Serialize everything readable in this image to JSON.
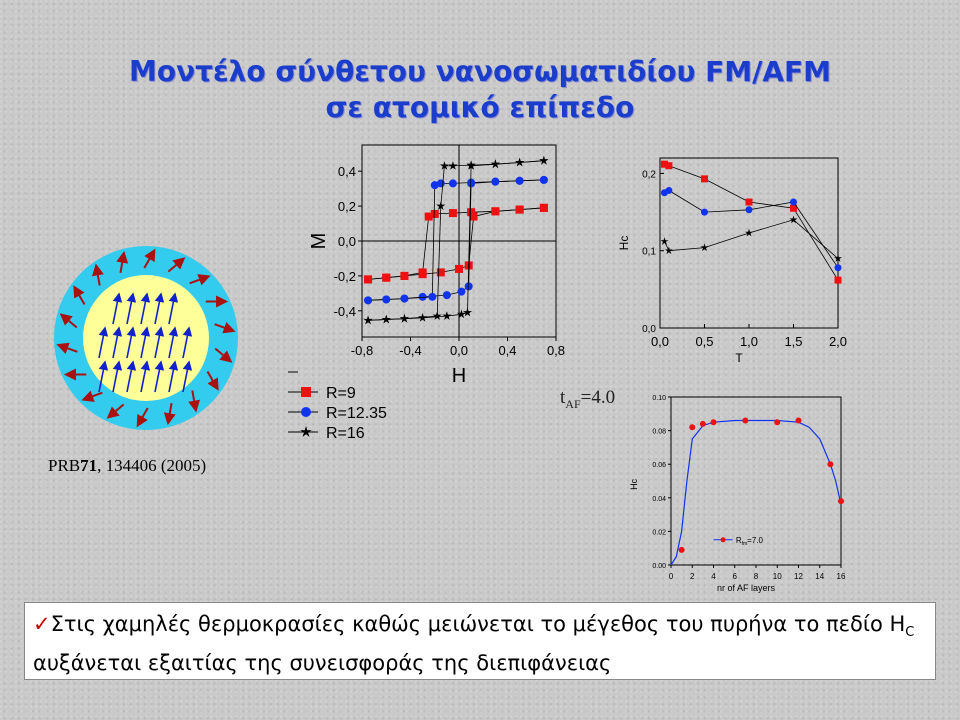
{
  "slide": {
    "title_line1": "Μοντέλο σύνθετου νανοσωματιδίου FM/AFM",
    "title_line2": "σε ατομικό επίπεδο",
    "reference_prefix": "PRB",
    "reference_volume": "71",
    "reference_rest": ", 134406 (2005)",
    "t_af_label": "t",
    "t_af_sub": "AF",
    "t_af_value": "=4.0",
    "note_check": "✓",
    "note_text_1": "Στις χαμηλές θερμοκρασίες καθώς μειώνεται το μέγεθος του πυρήνα   το πεδίο H",
    "note_sub": "C",
    "note_text_2": " αυξάνεται εξαιτίας της συνεισφοράς της διεπιφάνειας"
  },
  "colors": {
    "title": "#1a3dcc",
    "shell": "#33ccee",
    "core": "#ffff99",
    "red": "#ee1111",
    "blue": "#1133ee",
    "black": "#000000"
  },
  "chart_data": [
    {
      "type": "line",
      "name": "hysteresis",
      "xlabel": "H",
      "ylabel": "M",
      "xlim": [
        -0.8,
        0.8
      ],
      "ylim": [
        -0.55,
        0.55
      ],
      "xticks": [
        "-0,8",
        "-0,4",
        "0,0",
        "0,4",
        "0,8"
      ],
      "yticks": [
        "-0,4",
        "-0,2",
        "0,0",
        "0,2",
        "0,4"
      ],
      "xtick_values": [
        -0.8,
        -0.4,
        0.0,
        0.4,
        0.8
      ],
      "ytick_values": [
        -0.4,
        -0.2,
        0.0,
        0.2,
        0.4
      ],
      "legend": [
        "R=9",
        "R=12.35",
        "R=16"
      ],
      "series": [
        {
          "name": "R=9",
          "marker": "square",
          "color": "#ee1111",
          "lower": [
            [
              -0.75,
              -0.22
            ],
            [
              -0.6,
              -0.21
            ],
            [
              -0.45,
              -0.2
            ],
            [
              -0.3,
              -0.19
            ],
            [
              -0.15,
              -0.18
            ],
            [
              0.0,
              -0.16
            ],
            [
              0.08,
              -0.14
            ],
            [
              0.12,
              0.14
            ],
            [
              0.3,
              0.17
            ],
            [
              0.5,
              0.18
            ],
            [
              0.7,
              0.19
            ]
          ],
          "upper": [
            [
              0.7,
              0.19
            ],
            [
              0.5,
              0.18
            ],
            [
              0.3,
              0.17
            ],
            [
              0.1,
              0.165
            ],
            [
              -0.05,
              0.16
            ],
            [
              -0.2,
              0.155
            ],
            [
              -0.25,
              0.14
            ],
            [
              -0.3,
              -0.18
            ],
            [
              -0.45,
              -0.2
            ],
            [
              -0.6,
              -0.21
            ],
            [
              -0.75,
              -0.22
            ]
          ]
        },
        {
          "name": "R=12.35",
          "marker": "circle",
          "color": "#1133ee",
          "lower": [
            [
              -0.75,
              -0.34
            ],
            [
              -0.6,
              -0.335
            ],
            [
              -0.45,
              -0.33
            ],
            [
              -0.3,
              -0.32
            ],
            [
              -0.1,
              -0.31
            ],
            [
              0.02,
              -0.29
            ],
            [
              0.08,
              -0.26
            ],
            [
              0.1,
              0.33
            ],
            [
              0.3,
              0.34
            ],
            [
              0.5,
              0.345
            ],
            [
              0.7,
              0.35
            ]
          ],
          "upper": [
            [
              0.7,
              0.35
            ],
            [
              0.5,
              0.345
            ],
            [
              0.3,
              0.34
            ],
            [
              0.1,
              0.335
            ],
            [
              -0.05,
              0.33
            ],
            [
              -0.15,
              0.33
            ],
            [
              -0.2,
              0.32
            ],
            [
              -0.22,
              -0.32
            ],
            [
              -0.45,
              -0.33
            ],
            [
              -0.6,
              -0.335
            ],
            [
              -0.75,
              -0.34
            ]
          ]
        },
        {
          "name": "R=16",
          "marker": "star",
          "color": "#000000",
          "lower": [
            [
              -0.75,
              -0.455
            ],
            [
              -0.6,
              -0.45
            ],
            [
              -0.45,
              -0.445
            ],
            [
              -0.3,
              -0.44
            ],
            [
              -0.1,
              -0.43
            ],
            [
              0.02,
              -0.42
            ],
            [
              0.07,
              -0.41
            ],
            [
              0.1,
              0.43
            ],
            [
              0.3,
              0.44
            ],
            [
              0.5,
              0.45
            ],
            [
              0.7,
              0.46
            ]
          ],
          "upper": [
            [
              0.7,
              0.46
            ],
            [
              0.5,
              0.45
            ],
            [
              0.3,
              0.44
            ],
            [
              0.1,
              0.435
            ],
            [
              -0.05,
              0.43
            ],
            [
              -0.12,
              0.43
            ],
            [
              -0.15,
              0.2
            ],
            [
              -0.18,
              -0.43
            ],
            [
              -0.45,
              -0.445
            ],
            [
              -0.6,
              -0.45
            ],
            [
              -0.75,
              -0.455
            ]
          ]
        }
      ]
    },
    {
      "type": "line",
      "name": "hc-vs-T",
      "xlabel": "T",
      "ylabel": "Hc",
      "xlim": [
        0.0,
        2.0
      ],
      "ylim": [
        0.0,
        0.22
      ],
      "xticks": [
        "0,0",
        "0,5",
        "1,0",
        "1,5",
        "2,0"
      ],
      "yticks": [
        "0,0",
        "0,1",
        "0,2"
      ],
      "xtick_values": [
        0.0,
        0.5,
        1.0,
        1.5,
        2.0
      ],
      "ytick_values": [
        0.0,
        0.1,
        0.2
      ],
      "series": [
        {
          "marker": "square",
          "color": "#ee1111",
          "x": [
            0.05,
            0.1,
            0.5,
            1.0,
            1.5,
            2.0
          ],
          "y": [
            0.212,
            0.21,
            0.193,
            0.163,
            0.155,
            0.062
          ]
        },
        {
          "marker": "circle",
          "color": "#1133ee",
          "x": [
            0.05,
            0.1,
            0.5,
            1.0,
            1.5,
            2.0
          ],
          "y": [
            0.175,
            0.178,
            0.15,
            0.153,
            0.163,
            0.078
          ]
        },
        {
          "marker": "star",
          "color": "#000000",
          "x": [
            0.05,
            0.1,
            0.5,
            1.0,
            1.5,
            2.0
          ],
          "y": [
            0.112,
            0.1,
            0.104,
            0.123,
            0.14,
            0.09
          ]
        }
      ]
    },
    {
      "type": "scatter",
      "name": "hc-vs-af-layers",
      "xlabel": "nr of AF layers",
      "ylabel": "Hc",
      "xlim": [
        0,
        16
      ],
      "ylim": [
        0.0,
        0.1
      ],
      "xticks": [
        "0",
        "2",
        "4",
        "6",
        "8",
        "10",
        "12",
        "14",
        "16"
      ],
      "yticks": [
        "0.00",
        "0.02",
        "0.04",
        "0.06",
        "0.08",
        "0.10"
      ],
      "xtick_values": [
        0,
        2,
        4,
        6,
        8,
        10,
        12,
        14,
        16
      ],
      "ytick_values": [
        0.0,
        0.02,
        0.04,
        0.06,
        0.08,
        0.1
      ],
      "legend_label": "R",
      "legend_sub": "fm",
      "legend_value": "=7.0",
      "points": {
        "x": [
          1,
          2,
          3,
          4,
          7,
          10,
          12,
          15,
          16
        ],
        "y": [
          0.009,
          0.082,
          0.084,
          0.085,
          0.086,
          0.085,
          0.086,
          0.06,
          0.038
        ]
      },
      "fit": {
        "x": [
          0,
          0.5,
          1,
          1.5,
          2,
          3,
          4,
          6,
          8,
          10,
          12,
          13,
          14,
          15,
          15.5,
          16
        ],
        "y": [
          0.0,
          0.005,
          0.02,
          0.05,
          0.075,
          0.083,
          0.085,
          0.086,
          0.086,
          0.086,
          0.085,
          0.082,
          0.075,
          0.06,
          0.05,
          0.036
        ]
      }
    }
  ]
}
